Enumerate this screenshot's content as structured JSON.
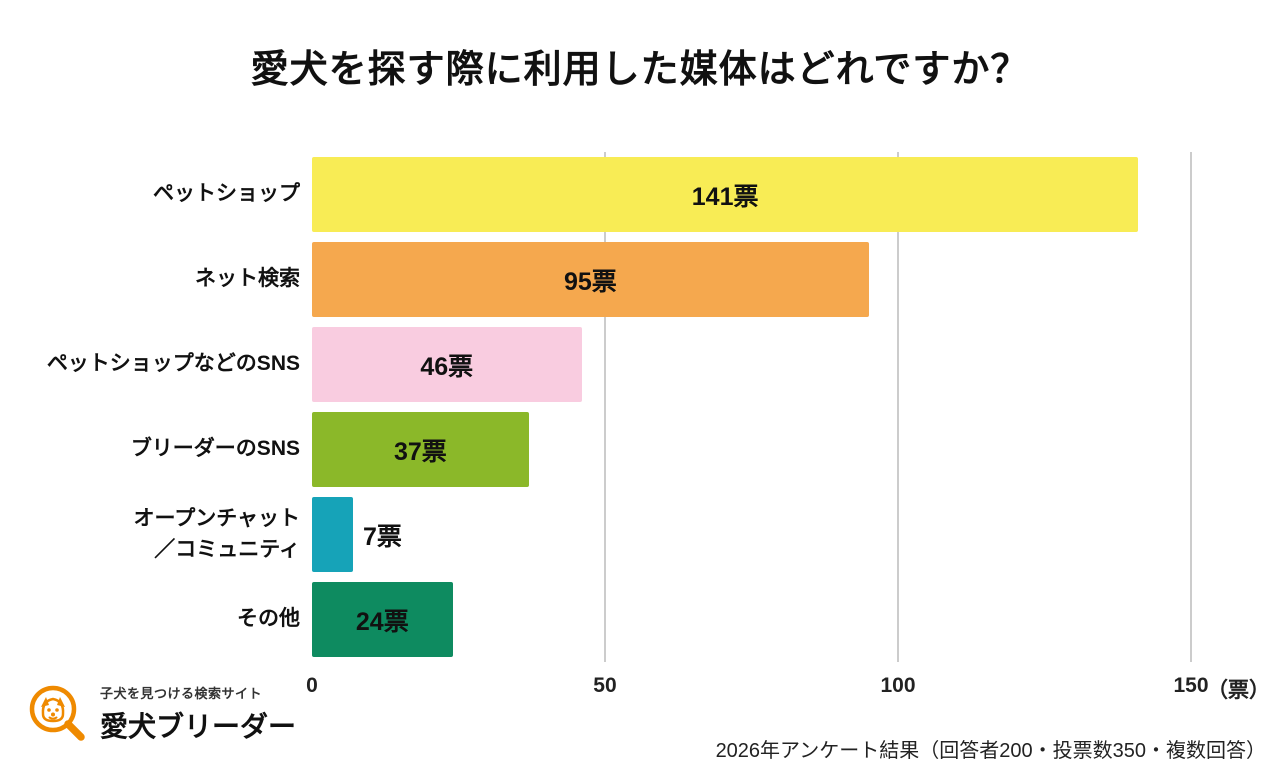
{
  "title": "愛犬を探す際に利用した媒体はどれですか？",
  "chart_data": {
    "type": "bar",
    "orientation": "horizontal",
    "title": "愛犬を探す際に利用した媒体はどれですか？",
    "categories": [
      "ペットショップ",
      "ネット検索",
      "ペットショップなどのSNS",
      "ブリーダーのSNS",
      "オープンチャット\n／コミュニティ",
      "その他"
    ],
    "values": [
      141,
      95,
      46,
      37,
      7,
      24
    ],
    "value_labels": [
      "141票",
      "95票",
      "46票",
      "37票",
      "7票",
      "24票"
    ],
    "unit": "票",
    "bar_colors": [
      "#F8EC55",
      "#F5A84E",
      "#F9CCE0",
      "#8BB829",
      "#16A3B8",
      "#0E8B60"
    ],
    "xlim": [
      0,
      150
    ],
    "x_ticks": [
      0,
      50,
      100,
      150
    ],
    "x_axis_unit": "（票）",
    "grid": true,
    "gridline_color": "#CCCCCC",
    "legend": false,
    "label_outside_threshold": 15
  },
  "footer": {
    "note": "2026年アンケート結果（回答者200・投票数350・複数回答）",
    "logo": {
      "tagline": "子犬を見つける検索サイト",
      "brand": "愛犬ブリーダー",
      "icon": "magnifier-dog-icon",
      "accent_color": "#EF8A00"
    }
  }
}
